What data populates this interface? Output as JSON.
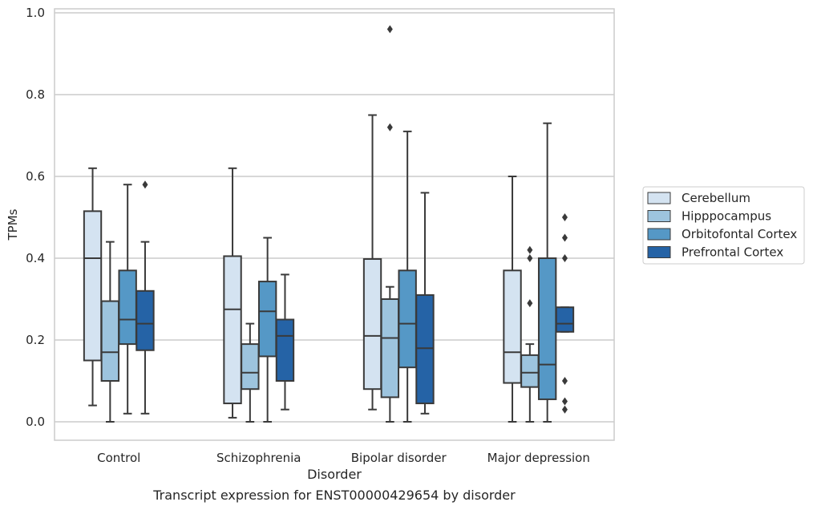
{
  "chart_data": {
    "type": "box",
    "title": "",
    "caption": "Transcript expression for ENST00000429654 by disorder",
    "xlabel": "Disorder",
    "ylabel": "TPMs",
    "ylim": [
      -0.045,
      1.01
    ],
    "yticks": [
      0.0,
      0.2,
      0.4,
      0.6,
      0.8,
      1.0
    ],
    "ytick_labels": [
      "0.0",
      "0.2",
      "0.4",
      "0.6",
      "0.8",
      "1.0"
    ],
    "grid": "horizontal",
    "legend_position": "right",
    "categories": [
      "Control",
      "Schizophrenia",
      "Bipolar disorder",
      "Major depression"
    ],
    "series": [
      {
        "name": "Cerebellum",
        "color": "#d4e3f1",
        "boxes": [
          {
            "whislo": 0.04,
            "q1": 0.15,
            "med": 0.4,
            "q3": 0.515,
            "whishi": 0.62,
            "fliers": []
          },
          {
            "whislo": 0.01,
            "q1": 0.045,
            "med": 0.275,
            "q3": 0.405,
            "whishi": 0.62,
            "fliers": []
          },
          {
            "whislo": 0.03,
            "q1": 0.08,
            "med": 0.21,
            "q3": 0.398,
            "whishi": 0.75,
            "fliers": []
          },
          {
            "whislo": 0.0,
            "q1": 0.095,
            "med": 0.17,
            "q3": 0.37,
            "whishi": 0.6,
            "fliers": []
          }
        ]
      },
      {
        "name": "Hipppocampus",
        "color": "#9dc4de",
        "boxes": [
          {
            "whislo": 0.0,
            "q1": 0.1,
            "med": 0.17,
            "q3": 0.295,
            "whishi": 0.44,
            "fliers": []
          },
          {
            "whislo": 0.0,
            "q1": 0.08,
            "med": 0.12,
            "q3": 0.19,
            "whishi": 0.24,
            "fliers": []
          },
          {
            "whislo": 0.0,
            "q1": 0.06,
            "med": 0.205,
            "q3": 0.3,
            "whishi": 0.33,
            "fliers": [
              0.96,
              0.72
            ]
          },
          {
            "whislo": 0.0,
            "q1": 0.085,
            "med": 0.12,
            "q3": 0.163,
            "whishi": 0.19,
            "fliers": [
              0.42,
              0.4,
              0.29
            ]
          }
        ]
      },
      {
        "name": "Orbitofontal Cortex",
        "color": "#5598c6",
        "boxes": [
          {
            "whislo": 0.02,
            "q1": 0.19,
            "med": 0.25,
            "q3": 0.37,
            "whishi": 0.58,
            "fliers": []
          },
          {
            "whislo": 0.0,
            "q1": 0.16,
            "med": 0.27,
            "q3": 0.343,
            "whishi": 0.45,
            "fliers": []
          },
          {
            "whislo": 0.0,
            "q1": 0.133,
            "med": 0.24,
            "q3": 0.37,
            "whishi": 0.71,
            "fliers": []
          },
          {
            "whislo": 0.0,
            "q1": 0.055,
            "med": 0.14,
            "q3": 0.4,
            "whishi": 0.73,
            "fliers": []
          }
        ]
      },
      {
        "name": "Prefrontal Cortex",
        "color": "#2563a6",
        "boxes": [
          {
            "whislo": 0.02,
            "q1": 0.175,
            "med": 0.24,
            "q3": 0.32,
            "whishi": 0.44,
            "fliers": [
              0.58
            ]
          },
          {
            "whislo": 0.03,
            "q1": 0.1,
            "med": 0.21,
            "q3": 0.25,
            "whishi": 0.36,
            "fliers": []
          },
          {
            "whislo": 0.02,
            "q1": 0.045,
            "med": 0.18,
            "q3": 0.31,
            "whishi": 0.56,
            "fliers": []
          },
          {
            "whislo": 0.22,
            "q1": 0.22,
            "med": 0.24,
            "q3": 0.28,
            "whishi": 0.28,
            "fliers": [
              0.5,
              0.45,
              0.4,
              0.1,
              0.05,
              0.03
            ]
          }
        ]
      }
    ]
  }
}
